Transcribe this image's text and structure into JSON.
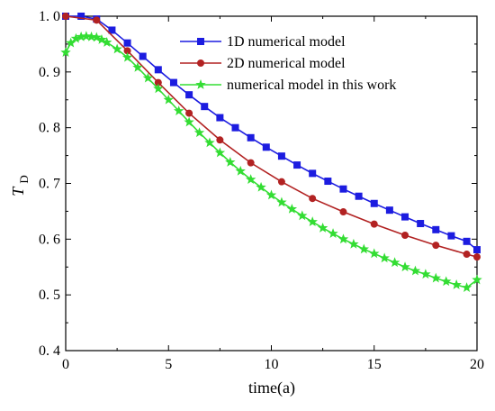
{
  "chart_data": {
    "type": "line",
    "xlabel": "time(a)",
    "ylabel_main": "T",
    "ylabel_sub": "D",
    "xlim": [
      0,
      20
    ],
    "ylim": [
      0.4,
      1.0
    ],
    "xticks": [
      0,
      5,
      10,
      15,
      20
    ],
    "yticks": [
      0.4,
      0.5,
      0.6,
      0.7,
      0.8,
      0.9,
      1.0
    ],
    "xtick_labels": [
      "0",
      "5",
      "10",
      "15",
      "20"
    ],
    "ytick_labels": [
      "0. 4",
      "0. 5",
      "0. 6",
      "0. 7",
      "0. 8",
      "0. 9",
      "1. 0"
    ],
    "grid": false,
    "legend_position": "top-right",
    "series": [
      {
        "name": "1D numerical model",
        "color": "#1c1ce0",
        "marker": "square",
        "x": [
          0,
          0.75,
          1.5,
          2.25,
          3,
          3.75,
          4.5,
          5.25,
          6,
          6.75,
          7.5,
          8.25,
          9,
          9.75,
          10.5,
          11.25,
          12,
          12.75,
          13.5,
          14.25,
          15,
          15.75,
          16.5,
          17.25,
          18,
          18.75,
          19.5,
          20
        ],
        "y": [
          1.0,
          1.0,
          0.995,
          0.975,
          0.952,
          0.928,
          0.904,
          0.881,
          0.859,
          0.838,
          0.818,
          0.8,
          0.782,
          0.765,
          0.749,
          0.733,
          0.718,
          0.704,
          0.69,
          0.677,
          0.664,
          0.652,
          0.64,
          0.628,
          0.617,
          0.606,
          0.596,
          0.581
        ]
      },
      {
        "name": "2D numerical model",
        "color": "#b22222",
        "marker": "circle",
        "x": [
          0,
          1.5,
          3,
          4.5,
          6,
          7.5,
          9,
          10.5,
          12,
          13.5,
          15,
          16.5,
          18,
          19.5,
          20
        ],
        "y": [
          1.0,
          0.993,
          0.938,
          0.881,
          0.826,
          0.778,
          0.737,
          0.703,
          0.673,
          0.649,
          0.627,
          0.607,
          0.589,
          0.573,
          0.568
        ]
      },
      {
        "name": "numerical model in this work",
        "color": "#33dd33",
        "marker": "star",
        "x": [
          0,
          0.25,
          0.5,
          0.75,
          1.0,
          1.25,
          1.5,
          1.75,
          2.0,
          2.5,
          3.0,
          3.5,
          4.0,
          4.5,
          5.0,
          5.5,
          6.0,
          6.5,
          7.0,
          7.5,
          8.0,
          8.5,
          9.0,
          9.5,
          10.0,
          10.5,
          11.0,
          11.5,
          12.0,
          12.5,
          13.0,
          13.5,
          14.0,
          14.5,
          15.0,
          15.5,
          16.0,
          16.5,
          17.0,
          17.5,
          18.0,
          18.5,
          19.0,
          19.5,
          20.0
        ],
        "y": [
          0.935,
          0.952,
          0.96,
          0.963,
          0.964,
          0.963,
          0.962,
          0.958,
          0.953,
          0.941,
          0.926,
          0.908,
          0.889,
          0.87,
          0.85,
          0.83,
          0.81,
          0.791,
          0.773,
          0.755,
          0.738,
          0.722,
          0.707,
          0.693,
          0.679,
          0.666,
          0.654,
          0.642,
          0.631,
          0.62,
          0.61,
          0.6,
          0.591,
          0.582,
          0.574,
          0.566,
          0.558,
          0.55,
          0.543,
          0.537,
          0.53,
          0.524,
          0.518,
          0.513,
          0.527
        ]
      }
    ]
  }
}
